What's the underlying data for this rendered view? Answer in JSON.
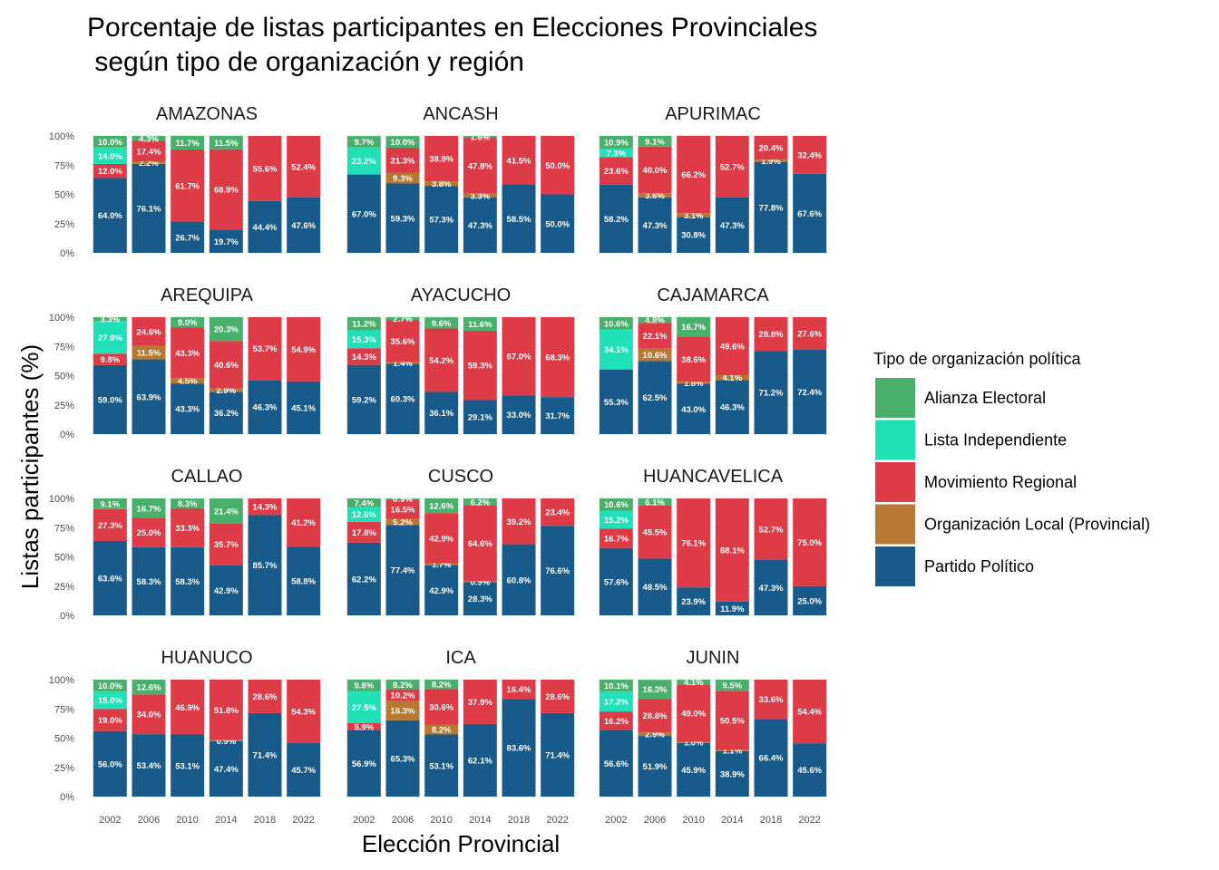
{
  "chart_data": {
    "type": "bar",
    "stacked": true,
    "title_line1": "Porcentaje de listas participantes en Elecciones Provinciales",
    "title_line2": " según tipo de organización y región",
    "xlabel": "Elección Provincial",
    "ylabel": "Listas participantes (%)",
    "ylim": [
      0,
      100
    ],
    "yticks": [
      "0%",
      "25%",
      "50%",
      "75%",
      "100%"
    ],
    "categories": [
      "2002",
      "2006",
      "2010",
      "2014",
      "2018",
      "2022"
    ],
    "legend": {
      "title": "Tipo de organización política",
      "position": "right",
      "items": [
        {
          "key": "alianza",
          "label": "Alianza Electoral",
          "color": "#48b06a"
        },
        {
          "key": "independiente",
          "label": "Lista Independiente",
          "color": "#20e0b8"
        },
        {
          "key": "movimiento",
          "label": "Movimiento Regional",
          "color": "#dc3b47"
        },
        {
          "key": "local",
          "label": "Organización Local (Provincial)",
          "color": "#b67832"
        },
        {
          "key": "partido",
          "label": "Partido Político",
          "color": "#185a89"
        }
      ]
    },
    "stack_order_bottom_to_top": [
      "partido",
      "local",
      "movimiento",
      "independiente",
      "alianza"
    ],
    "panels": [
      {
        "region": "AMAZONAS",
        "partido": [
          64.0,
          76.1,
          26.7,
          19.7,
          44.4,
          47.6
        ],
        "local": [
          0,
          2.2,
          0,
          0,
          0,
          0
        ],
        "movimiento": [
          12.0,
          17.4,
          61.7,
          68.9,
          55.6,
          52.4
        ],
        "independiente": [
          14.0,
          0,
          0,
          0,
          0,
          0
        ],
        "alianza": [
          10.0,
          4.3,
          11.7,
          11.5,
          0,
          0
        ]
      },
      {
        "region": "ANCASH",
        "partido": [
          67.0,
          59.3,
          57.3,
          47.3,
          58.5,
          50.0
        ],
        "local": [
          0,
          9.3,
          3.8,
          3.3,
          0,
          0
        ],
        "movimiento": [
          0,
          21.3,
          38.9,
          47.8,
          41.5,
          50.0
        ],
        "independiente": [
          23.2,
          0,
          0,
          0,
          0,
          0
        ],
        "alianza": [
          9.7,
          10.0,
          0,
          1.6,
          0,
          0
        ]
      },
      {
        "region": "APURIMAC",
        "partido": [
          58.2,
          47.3,
          30.8,
          47.3,
          77.8,
          67.6
        ],
        "local": [
          0,
          3.6,
          3.1,
          0,
          1.9,
          0
        ],
        "movimiento": [
          23.6,
          40.0,
          66.2,
          52.7,
          20.4,
          32.4
        ],
        "independiente": [
          7.3,
          0,
          0,
          0,
          0,
          0
        ],
        "alianza": [
          10.9,
          9.1,
          0,
          0,
          0,
          0
        ]
      },
      {
        "region": "AREQUIPA",
        "partido": [
          59.0,
          63.9,
          43.3,
          36.2,
          46.3,
          45.1
        ],
        "local": [
          0,
          11.5,
          4.5,
          2.9,
          0,
          0
        ],
        "movimiento": [
          9.8,
          24.6,
          43.3,
          40.6,
          53.7,
          54.9
        ],
        "independiente": [
          27.9,
          0,
          0,
          0,
          0,
          0
        ],
        "alianza": [
          3.3,
          0,
          9.0,
          20.3,
          0,
          0
        ]
      },
      {
        "region": "AYACUCHO",
        "partido": [
          59.2,
          60.3,
          36.1,
          29.1,
          33.0,
          31.7
        ],
        "local": [
          0,
          1.4,
          0,
          0,
          0,
          0
        ],
        "movimiento": [
          14.3,
          35.6,
          54.2,
          59.3,
          67.0,
          68.3
        ],
        "independiente": [
          15.3,
          0,
          0,
          0,
          0,
          0
        ],
        "alianza": [
          11.2,
          2.7,
          9.6,
          11.6,
          0,
          0
        ]
      },
      {
        "region": "CAJAMARCA",
        "partido": [
          55.3,
          62.5,
          43.0,
          46.3,
          71.2,
          72.4
        ],
        "local": [
          0,
          10.6,
          1.8,
          4.1,
          0,
          0
        ],
        "movimiento": [
          0,
          22.1,
          38.6,
          49.6,
          28.8,
          27.6
        ],
        "independiente": [
          34.1,
          0,
          0,
          0,
          0,
          0
        ],
        "alianza": [
          10.6,
          4.8,
          16.7,
          0,
          0,
          0
        ]
      },
      {
        "region": "CALLAO",
        "partido": [
          63.6,
          58.3,
          58.3,
          42.9,
          85.7,
          58.8
        ],
        "local": [
          0,
          0,
          0,
          0,
          0,
          0
        ],
        "movimiento": [
          27.3,
          25.0,
          33.3,
          35.7,
          14.3,
          41.2
        ],
        "independiente": [
          0,
          0,
          0,
          0,
          0,
          0
        ],
        "alianza": [
          9.1,
          16.7,
          8.3,
          21.4,
          0,
          0
        ]
      },
      {
        "region": "CUSCO",
        "partido": [
          62.2,
          77.4,
          42.9,
          28.3,
          60.8,
          76.6
        ],
        "local": [
          0,
          5.2,
          1.7,
          0.9,
          0,
          0
        ],
        "movimiento": [
          17.8,
          16.5,
          42.9,
          64.6,
          39.2,
          23.4
        ],
        "independiente": [
          12.6,
          0,
          0,
          0,
          0,
          0
        ],
        "alianza": [
          7.4,
          0.9,
          12.6,
          6.2,
          0,
          0
        ]
      },
      {
        "region": "HUANCAVELICA",
        "partido": [
          57.6,
          48.5,
          23.9,
          11.9,
          47.3,
          25.0
        ],
        "local": [
          0,
          0,
          0,
          0,
          0,
          0
        ],
        "movimiento": [
          16.7,
          45.5,
          76.1,
          88.1,
          52.7,
          75.0
        ],
        "independiente": [
          15.2,
          0,
          0,
          0,
          0,
          0
        ],
        "alianza": [
          10.6,
          6.1,
          0,
          0,
          0,
          0
        ]
      },
      {
        "region": "HUANUCO",
        "partido": [
          56.0,
          53.4,
          53.1,
          47.4,
          71.4,
          45.7
        ],
        "local": [
          0,
          0,
          0,
          0.9,
          0,
          0
        ],
        "movimiento": [
          19.0,
          34.0,
          46.9,
          51.8,
          28.6,
          54.3
        ],
        "independiente": [
          15.0,
          0,
          0,
          0,
          0,
          0
        ],
        "alianza": [
          10.0,
          12.6,
          0,
          0,
          0,
          0
        ]
      },
      {
        "region": "ICA",
        "partido": [
          56.9,
          65.3,
          53.1,
          62.1,
          83.6,
          71.4
        ],
        "local": [
          0,
          16.3,
          8.2,
          0,
          0,
          0
        ],
        "movimiento": [
          5.9,
          10.2,
          30.6,
          37.9,
          16.4,
          28.6
        ],
        "independiente": [
          27.5,
          0,
          0,
          0,
          0,
          0
        ],
        "alianza": [
          9.8,
          8.2,
          8.2,
          0,
          0,
          0
        ]
      },
      {
        "region": "JUNIN",
        "partido": [
          56.6,
          51.9,
          45.9,
          38.9,
          66.4,
          45.6
        ],
        "local": [
          0,
          2.9,
          1.0,
          1.1,
          0,
          0
        ],
        "movimiento": [
          16.2,
          28.8,
          49.0,
          50.5,
          33.6,
          54.4
        ],
        "independiente": [
          17.2,
          0,
          0,
          0,
          0,
          0
        ],
        "alianza": [
          10.1,
          16.3,
          4.1,
          9.5,
          0,
          0
        ]
      }
    ]
  }
}
